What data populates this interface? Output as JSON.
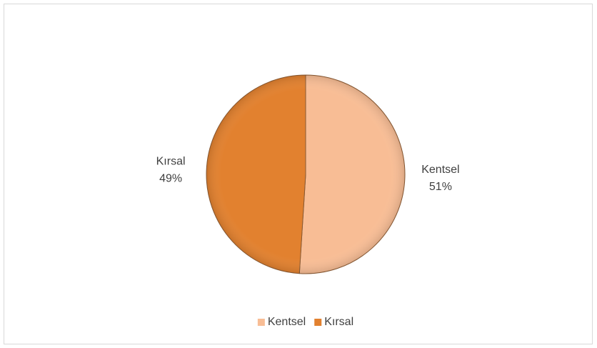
{
  "chart_data": {
    "type": "pie",
    "categories": [
      "Kentsel",
      "Kırsal"
    ],
    "values": [
      51,
      49
    ],
    "value_labels": [
      "51%",
      "49%"
    ],
    "colors": [
      "#f8bd95",
      "#e2812f"
    ],
    "legend": "bottom"
  }
}
